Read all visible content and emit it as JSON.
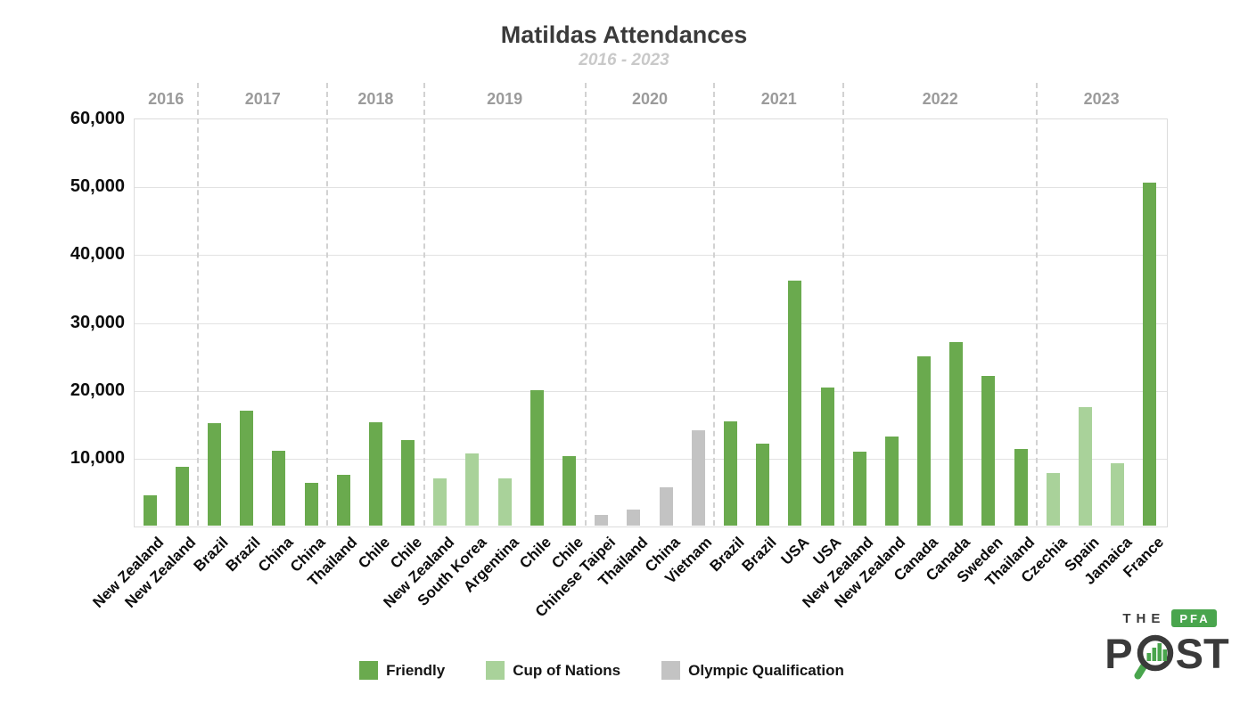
{
  "title": "Matildas Attendances",
  "subtitle": "2016 - 2023",
  "chart_data": {
    "type": "bar",
    "title": "Matildas Attendances",
    "subtitle": "2016 - 2023",
    "xlabel": "",
    "ylabel": "",
    "ylim": [
      0,
      60000
    ],
    "y_ticks": [
      10000,
      20000,
      30000,
      40000,
      50000,
      60000
    ],
    "y_tick_labels": [
      "10,000",
      "20,000",
      "30,000",
      "40,000",
      "50,000",
      "60,000"
    ],
    "grid": "horizontal gridlines on; dashed vertical separators between year groups",
    "legend_position": "bottom",
    "categories_legend": [
      {
        "name": "Friendly",
        "color": "#6aaa4e"
      },
      {
        "name": "Cup of Nations",
        "color": "#a9d29a"
      },
      {
        "name": "Olympic Qualification",
        "color": "#c3c3c3"
      }
    ],
    "year_groups": [
      {
        "year": "2016",
        "bars": 2
      },
      {
        "year": "2017",
        "bars": 4
      },
      {
        "year": "2018",
        "bars": 3
      },
      {
        "year": "2019",
        "bars": 5
      },
      {
        "year": "2020",
        "bars": 4
      },
      {
        "year": "2021",
        "bars": 4
      },
      {
        "year": "2022",
        "bars": 6
      },
      {
        "year": "2023",
        "bars": 4
      }
    ],
    "bars": [
      {
        "year": "2016",
        "opponent": "New Zealand",
        "value": 4500,
        "category": "Friendly"
      },
      {
        "year": "2016",
        "opponent": "New Zealand",
        "value": 8700,
        "category": "Friendly"
      },
      {
        "year": "2017",
        "opponent": "Brazil",
        "value": 15100,
        "category": "Friendly"
      },
      {
        "year": "2017",
        "opponent": "Brazil",
        "value": 16900,
        "category": "Friendly"
      },
      {
        "year": "2017",
        "opponent": "China",
        "value": 11000,
        "category": "Friendly"
      },
      {
        "year": "2017",
        "opponent": "China",
        "value": 6300,
        "category": "Friendly"
      },
      {
        "year": "2018",
        "opponent": "Thailand",
        "value": 7500,
        "category": "Friendly"
      },
      {
        "year": "2018",
        "opponent": "Chile",
        "value": 15200,
        "category": "Friendly"
      },
      {
        "year": "2018",
        "opponent": "Chile",
        "value": 12600,
        "category": "Friendly"
      },
      {
        "year": "2019",
        "opponent": "New Zealand",
        "value": 6900,
        "category": "Cup of Nations"
      },
      {
        "year": "2019",
        "opponent": "South Korea",
        "value": 10600,
        "category": "Cup of Nations"
      },
      {
        "year": "2019",
        "opponent": "Argentina",
        "value": 7000,
        "category": "Cup of Nations"
      },
      {
        "year": "2019",
        "opponent": "Chile",
        "value": 20000,
        "category": "Friendly"
      },
      {
        "year": "2019",
        "opponent": "Chile",
        "value": 10300,
        "category": "Friendly"
      },
      {
        "year": "2020",
        "opponent": "Chinese Taipei",
        "value": 1600,
        "category": "Olympic Qualification"
      },
      {
        "year": "2020",
        "opponent": "Thailand",
        "value": 2300,
        "category": "Olympic Qualification"
      },
      {
        "year": "2020",
        "opponent": "China",
        "value": 5700,
        "category": "Olympic Qualification"
      },
      {
        "year": "2020",
        "opponent": "Vietnam",
        "value": 14000,
        "category": "Olympic Qualification"
      },
      {
        "year": "2021",
        "opponent": "Brazil",
        "value": 15300,
        "category": "Friendly"
      },
      {
        "year": "2021",
        "opponent": "Brazil",
        "value": 12100,
        "category": "Friendly"
      },
      {
        "year": "2021",
        "opponent": "USA",
        "value": 36100,
        "category": "Friendly"
      },
      {
        "year": "2021",
        "opponent": "USA",
        "value": 20400,
        "category": "Friendly"
      },
      {
        "year": "2022",
        "opponent": "New Zealand",
        "value": 10900,
        "category": "Friendly"
      },
      {
        "year": "2022",
        "opponent": "New Zealand",
        "value": 13100,
        "category": "Friendly"
      },
      {
        "year": "2022",
        "opponent": "Canada",
        "value": 25000,
        "category": "Friendly"
      },
      {
        "year": "2022",
        "opponent": "Canada",
        "value": 27000,
        "category": "Friendly"
      },
      {
        "year": "2022",
        "opponent": "Sweden",
        "value": 22000,
        "category": "Friendly"
      },
      {
        "year": "2022",
        "opponent": "Thailand",
        "value": 11300,
        "category": "Friendly"
      },
      {
        "year": "2023",
        "opponent": "Czechia",
        "value": 7800,
        "category": "Cup of Nations"
      },
      {
        "year": "2023",
        "opponent": "Spain",
        "value": 17400,
        "category": "Cup of Nations"
      },
      {
        "year": "2023",
        "opponent": "Jamaica",
        "value": 9200,
        "category": "Cup of Nations"
      },
      {
        "year": "2023",
        "opponent": "France",
        "value": 50600,
        "category": "Friendly"
      }
    ]
  },
  "legend": {
    "items": [
      {
        "label": "Friendly",
        "color": "#6aaa4e"
      },
      {
        "label": "Cup of Nations",
        "color": "#a9d29a"
      },
      {
        "label": "Olympic Qualification",
        "color": "#c3c3c3"
      }
    ]
  },
  "logo": {
    "the": "THE",
    "pfa": "PFA",
    "post_p": "P",
    "post_st": "ST"
  },
  "colors": {
    "friendly": "#6aaa4e",
    "cup_of_nations": "#a9d29a",
    "olympic_qualification": "#c3c3c3",
    "title": "#3b3b3b",
    "subtitle": "#c9c9c9",
    "year_label": "#9b9b9b",
    "gridline": "#e2e2e2",
    "logo_green": "#49a54d",
    "logo_dark": "#3a3a3a"
  }
}
